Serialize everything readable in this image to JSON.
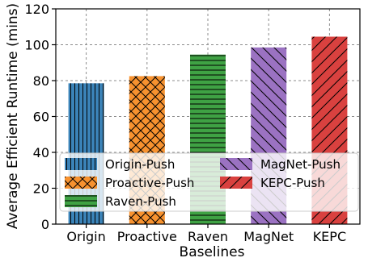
{
  "chart_data": {
    "type": "bar",
    "categories": [
      "Origin",
      "Proactive",
      "Raven",
      "MagNet",
      "KEPC"
    ],
    "values": [
      78.5,
      82.5,
      94.5,
      98.5,
      104.5
    ],
    "series": [
      {
        "name": "Origin-Push",
        "value": 78.5,
        "color": "#3b83b8",
        "hatch": "vertical"
      },
      {
        "name": "Proactive-Push",
        "value": 82.5,
        "color": "#f7922f",
        "hatch": "cross"
      },
      {
        "name": "Raven-Push",
        "value": 94.5,
        "color": "#3fa244",
        "hatch": "horizontal"
      },
      {
        "name": "MagNet-Push",
        "value": 98.5,
        "color": "#9b72c2",
        "hatch": "backslash"
      },
      {
        "name": "KEPC-Push",
        "value": 104.5,
        "color": "#d9413f",
        "hatch": "slash"
      }
    ],
    "xlabel": "Baselines",
    "ylabel": "Average Efficient Runtime (mins)",
    "ylim": [
      0,
      120
    ],
    "yticks": [
      0,
      20,
      40,
      60,
      80,
      100,
      120
    ],
    "grid": true,
    "legend_position": "lower-center, two columns"
  }
}
